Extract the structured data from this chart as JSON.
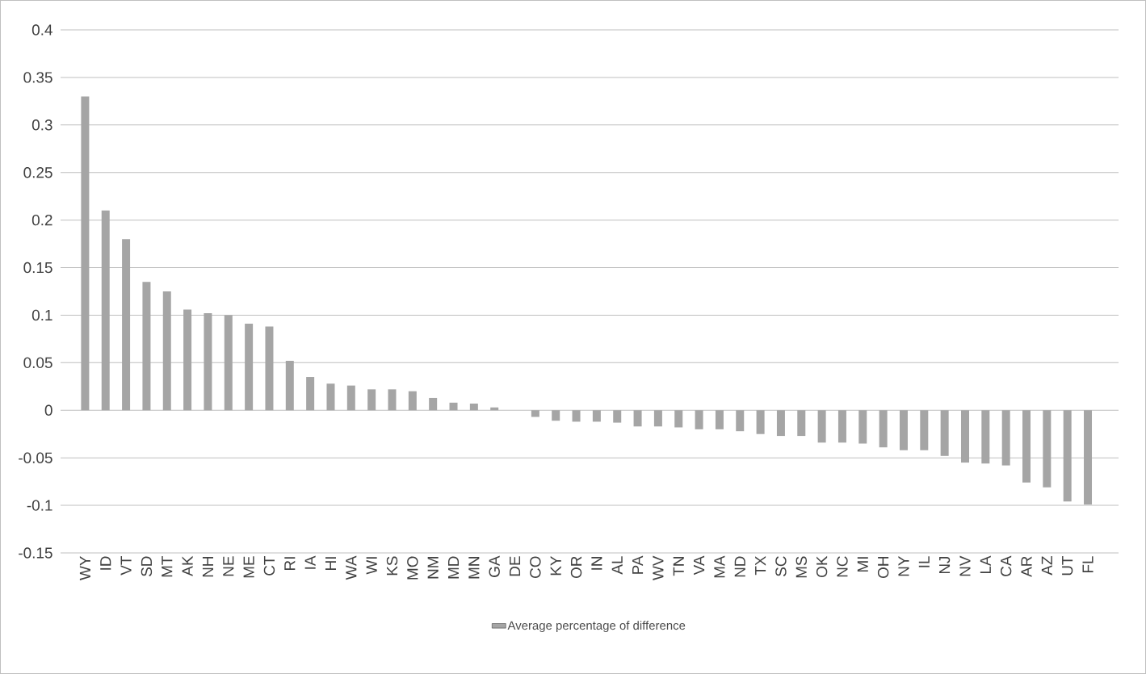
{
  "chart_data": {
    "type": "bar",
    "categories": [
      "WY",
      "ID",
      "VT",
      "SD",
      "MT",
      "AK",
      "NH",
      "NE",
      "ME",
      "CT",
      "RI",
      "IA",
      "HI",
      "WA",
      "WI",
      "KS",
      "MO",
      "NM",
      "MD",
      "MN",
      "GA",
      "DE",
      "CO",
      "KY",
      "OR",
      "IN",
      "AL",
      "PA",
      "WV",
      "TN",
      "VA",
      "MA",
      "ND",
      "TX",
      "SC",
      "MS",
      "OK",
      "NC",
      "MI",
      "OH",
      "NY",
      "IL",
      "NJ",
      "NV",
      "LA",
      "CA",
      "AR",
      "AZ",
      "UT",
      "FL"
    ],
    "series": [
      {
        "name": "Average percentage of difference",
        "color": "#a5a5a5",
        "values": [
          0.33,
          0.21,
          0.18,
          0.135,
          0.125,
          0.106,
          0.102,
          0.1,
          0.091,
          0.088,
          0.052,
          0.035,
          0.028,
          0.026,
          0.022,
          0.022,
          0.02,
          0.013,
          0.008,
          0.007,
          0.003,
          0,
          -0.007,
          -0.011,
          -0.012,
          -0.012,
          -0.013,
          -0.017,
          -0.017,
          -0.018,
          -0.02,
          -0.02,
          -0.022,
          -0.025,
          -0.027,
          -0.027,
          -0.034,
          -0.034,
          -0.035,
          -0.039,
          -0.042,
          -0.042,
          -0.048,
          -0.055,
          -0.056,
          -0.058,
          -0.076,
          -0.081,
          -0.096,
          -0.099
        ]
      }
    ],
    "ylim": [
      -0.15,
      0.4
    ],
    "yticks": [
      -0.15,
      -0.1,
      -0.05,
      0,
      0.05,
      0.1,
      0.15,
      0.2,
      0.25,
      0.3,
      0.35,
      0.4
    ],
    "grid": "y",
    "legend": "bottom"
  }
}
